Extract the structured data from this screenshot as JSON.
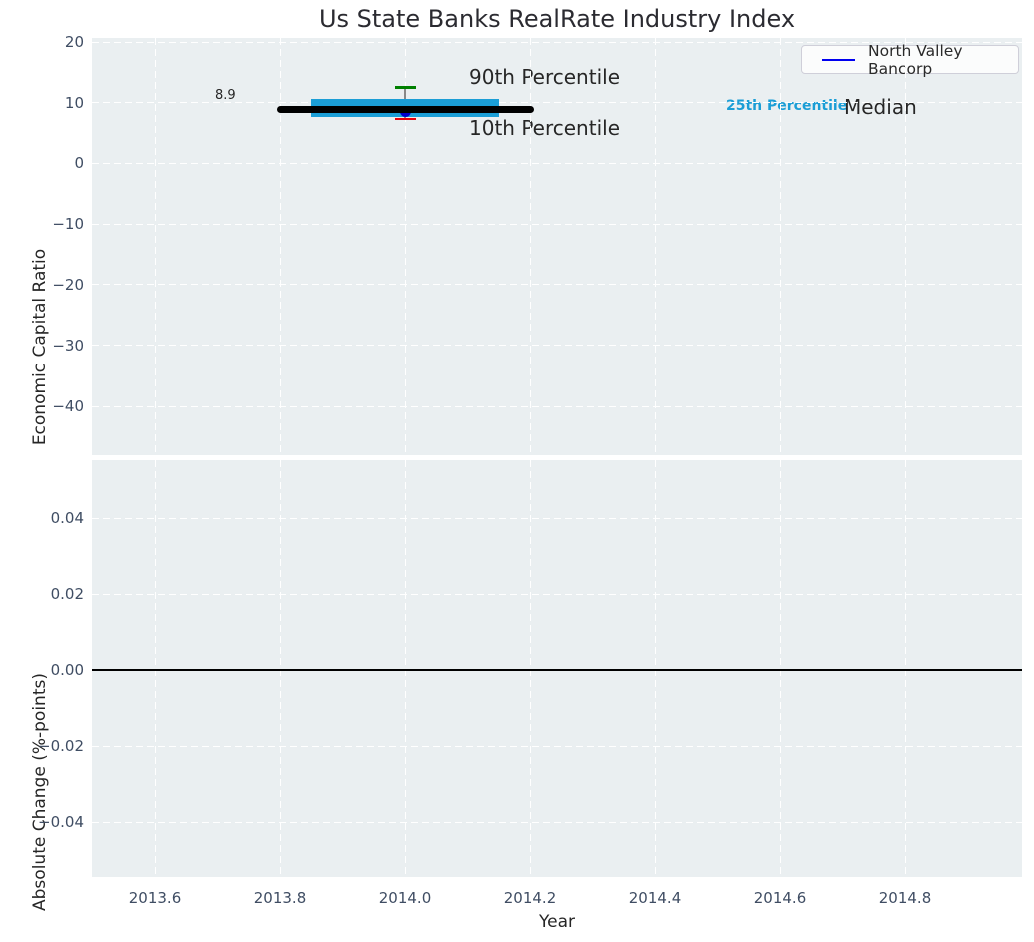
{
  "title": "Us State Banks RealRate Industry Index",
  "legend": {
    "label": "North Valley Bancorp",
    "line_color": "#0000f0"
  },
  "annotations": {
    "median_value": "8.9",
    "p90_label": "90th Percentile",
    "p10_label": "10th Percentile",
    "p25_label": "25th Percentile",
    "median_label": "Median"
  },
  "colors": {
    "plot_background": "#eaeff1",
    "grid": "#ffffff",
    "tick_label": "#3f4d63",
    "median_line": "#000000",
    "iqr_band": "#1b9ed6",
    "p90_cap": "#008000",
    "p10_cap": "#e8000b",
    "whisker": "#888888",
    "company_marker": "#0000cc",
    "annotation_25th": "#1b9ed6",
    "zero_line": "#000000"
  },
  "chart_data": [
    {
      "type": "line",
      "subplot": "top",
      "title": "Us State Banks RealRate Industry Index",
      "xlabel": "Year",
      "ylabel": "Economic Capital Ratio",
      "xlim": [
        2013.5,
        2014.99
      ],
      "ylim": [
        -48,
        20.7
      ],
      "xticks": [
        2013.6,
        2013.8,
        2014.0,
        2014.2,
        2014.4,
        2014.6,
        2014.8
      ],
      "yticks": [
        20,
        10,
        0,
        -10,
        -20,
        -30,
        -40
      ],
      "grid": true,
      "legend_position": "upper right",
      "legend_entries": [
        "North Valley Bancorp"
      ],
      "series": [
        {
          "role": "median",
          "name": "Median",
          "y": 8.9,
          "x_start": 2013.8,
          "x_end": 2014.2,
          "label_value": "8.9"
        },
        {
          "role": "iqr_band",
          "name": "25th-75th Percentile",
          "y_low": 7.6,
          "y_high": 10.6,
          "x_start": 2013.85,
          "x_end": 2014.15
        },
        {
          "role": "p90_cap",
          "name": "90th Percentile",
          "x": 2014.0,
          "y": 12.5
        },
        {
          "role": "p10_cap",
          "name": "10th Percentile",
          "x": 2014.0,
          "y": 7.3
        },
        {
          "role": "whisker",
          "name": "Percentile Whisker",
          "x": 2014.0,
          "y_low": 7.3,
          "y_high": 12.5
        },
        {
          "role": "company_marker",
          "name": "North Valley Bancorp",
          "x": 2014.0,
          "y": 8.5
        }
      ]
    },
    {
      "type": "line",
      "subplot": "bottom",
      "xlabel": "Year",
      "ylabel": "Absolute Change (%-points)",
      "xlim": [
        2013.5,
        2014.99
      ],
      "ylim": [
        -0.055,
        0.055
      ],
      "xticks": [
        2013.6,
        2013.8,
        2014.0,
        2014.2,
        2014.4,
        2014.6,
        2014.8
      ],
      "yticks": [
        0.04,
        0.02,
        0.0,
        -0.02,
        -0.04
      ],
      "grid": true,
      "series": [
        {
          "role": "zero_line",
          "name": "Zero Line",
          "y": 0.0,
          "x_start": 2013.5,
          "x_end": 2014.99
        }
      ]
    }
  ]
}
